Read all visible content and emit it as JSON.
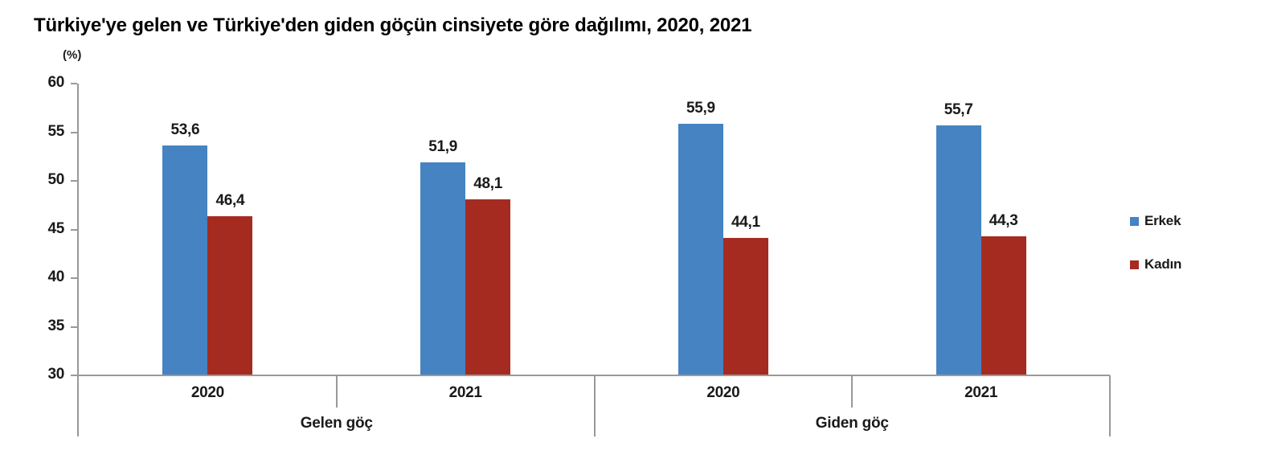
{
  "chart_data": {
    "type": "bar",
    "title": "Türkiye'ye gelen ve Türkiye'den giden göçün cinsiyete göre dağılımı, 2020, 2021",
    "unit_label": "(%)",
    "y_axis": {
      "min": 30,
      "max": 60,
      "step": 5,
      "tick_labels": [
        "30",
        "35",
        "40",
        "45",
        "50",
        "55",
        "60"
      ],
      "grid": false
    },
    "groups": [
      {
        "label": "Gelen göç",
        "years": [
          "2020",
          "2021"
        ]
      },
      {
        "label": "Giden göç",
        "years": [
          "2020",
          "2021"
        ]
      }
    ],
    "categories": [
      "Gelen göç 2020",
      "Gelen göç 2021",
      "Giden göç 2020",
      "Giden göç 2021"
    ],
    "series": [
      {
        "name": "Erkek",
        "color": "#4583C2",
        "values": [
          53.6,
          51.9,
          55.9,
          55.7
        ],
        "value_labels": [
          "53,6",
          "51,9",
          "55,9",
          "55,7"
        ]
      },
      {
        "name": "Kadın",
        "color": "#A52B20",
        "values": [
          46.4,
          48.1,
          44.1,
          44.3
        ],
        "value_labels": [
          "46,4",
          "48,1",
          "44,1",
          "44,3"
        ]
      }
    ],
    "legend": {
      "position": "right",
      "items": [
        {
          "label": "Erkek",
          "color": "#4583C2"
        },
        {
          "label": "Kadın",
          "color": "#A52B20"
        }
      ]
    }
  },
  "colors": {
    "axis": "#999999",
    "text": "#1A1A1A",
    "title": "#000000",
    "background": "#FFFFFF"
  }
}
